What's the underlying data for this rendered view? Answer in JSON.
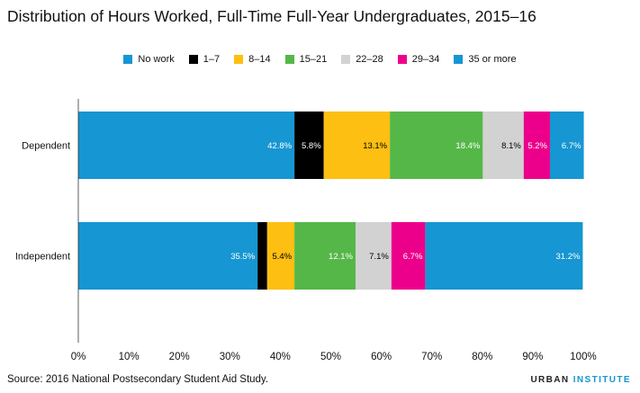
{
  "chart_data": {
    "type": "bar",
    "orientation": "horizontal",
    "stacked": true,
    "title": "Distribution of Hours Worked, Full-Time Full-Year Undergraduates, 2015–16",
    "xlabel": "",
    "ylabel": "",
    "xlim": [
      0,
      100
    ],
    "x_ticks": [
      "0%",
      "10%",
      "20%",
      "30%",
      "40%",
      "50%",
      "60%",
      "70%",
      "80%",
      "90%",
      "100%"
    ],
    "categories": [
      "Dependent",
      "Independent"
    ],
    "series": [
      {
        "name": "No work",
        "color": "#1696d2",
        "values": [
          42.8,
          35.5
        ],
        "labels": [
          "42.8%",
          "35.5%"
        ],
        "label_color": "#ffffff"
      },
      {
        "name": "1–7",
        "color": "#000000",
        "values": [
          5.8,
          1.9
        ],
        "labels": [
          "5.8%",
          ""
        ],
        "label_color": "#ffffff"
      },
      {
        "name": "8–14",
        "color": "#fdbf11",
        "values": [
          13.1,
          5.4
        ],
        "labels": [
          "13.1%",
          "5.4%"
        ],
        "label_color": "#000000"
      },
      {
        "name": "15–21",
        "color": "#55b748",
        "values": [
          18.4,
          12.1
        ],
        "labels": [
          "18.4%",
          "12.1%"
        ],
        "label_color": "#ffffff"
      },
      {
        "name": "22–28",
        "color": "#d2d2d2",
        "values": [
          8.1,
          7.1
        ],
        "labels": [
          "8.1%",
          "7.1%"
        ],
        "label_color": "#000000"
      },
      {
        "name": "29–34",
        "color": "#ec008b",
        "values": [
          5.2,
          6.7
        ],
        "labels": [
          "5.2%",
          "6.7%"
        ],
        "label_color": "#ffffff"
      },
      {
        "name": "35 or more",
        "color": "#1696d2",
        "values": [
          6.7,
          31.2
        ],
        "labels": [
          "6.7%",
          "31.2%"
        ],
        "label_color": "#ffffff"
      }
    ],
    "legend_position": "top-center",
    "grid": false
  },
  "footer": {
    "source": "Source: 2016 National Postsecondary Student Aid Study.",
    "brand_main": "URBAN ",
    "brand_accent": "INSTITUTE"
  }
}
